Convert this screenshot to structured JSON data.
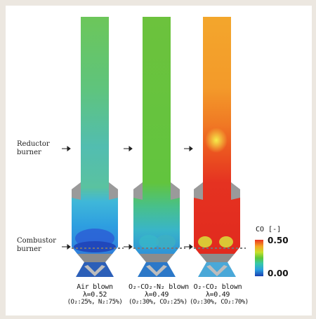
{
  "labels": {
    "reductor": [
      "Reductor",
      "burner"
    ],
    "combustor": [
      "Combustor",
      "burner"
    ]
  },
  "legend": {
    "title": "CO [-]",
    "max": "0.50",
    "min": "0.00",
    "colors": [
      "#1a3fb0",
      "#2aa0e0",
      "#37c9a8",
      "#5cc73a",
      "#c8df2a",
      "#f5a623",
      "#e83221"
    ]
  },
  "cases": [
    {
      "line1": "Air blown",
      "line2": "λ=0.52",
      "line3": "(O₂:25%, N₂:75%)"
    },
    {
      "line1": "O₂-CO₂-N₂ blown",
      "line2": "λ=0.49",
      "line3": "(O₂:30%, CO₂:25%)"
    },
    {
      "line1": "O₂-CO₂ blown",
      "line2": "λ=0.49",
      "line3": "(O₂:30%, CO₂:70%)"
    }
  ]
}
